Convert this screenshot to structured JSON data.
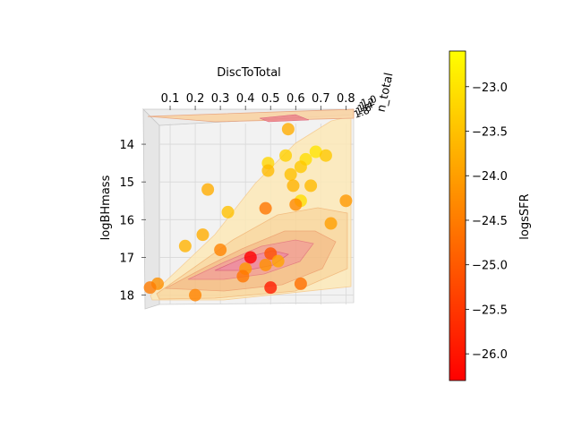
{
  "chart_data": {
    "type": "scatter",
    "projection": "3d",
    "x_axis": {
      "label": "DiscToTotal",
      "ticks": [
        "0.1",
        "0.2",
        "0.3",
        "0.4",
        "0.5",
        "0.6",
        "0.7",
        "0.8"
      ],
      "lim": [
        0.05,
        0.82
      ]
    },
    "y_axis": {
      "label": "logBHmass",
      "ticks": [
        "14",
        "15",
        "16",
        "17",
        "18"
      ],
      "lim": [
        13.5,
        18.2
      ],
      "inverted": true
    },
    "z_axis": {
      "label": "n_total",
      "ticks": [
        "1.0",
        "1.2",
        "1.4",
        "1.6",
        "1.8"
      ]
    },
    "colorbar": {
      "label": "logsSFR",
      "ticks": [
        "-23.0",
        "-23.5",
        "-24.0",
        "-24.5",
        "-25.0",
        "-25.5",
        "-26.0"
      ],
      "range": [
        -26.3,
        -22.6
      ],
      "colormap": "autumn",
      "colors": [
        "#ff0000",
        "#ffff00"
      ]
    },
    "grid": true,
    "points": [
      {
        "x": 0.57,
        "y": 13.6,
        "c": -23.8
      },
      {
        "x": 0.68,
        "y": 14.2,
        "c": -23.0
      },
      {
        "x": 0.72,
        "y": 14.3,
        "c": -23.4
      },
      {
        "x": 0.56,
        "y": 14.3,
        "c": -23.3
      },
      {
        "x": 0.64,
        "y": 14.4,
        "c": -23.1
      },
      {
        "x": 0.49,
        "y": 14.5,
        "c": -23.2
      },
      {
        "x": 0.62,
        "y": 14.6,
        "c": -23.4
      },
      {
        "x": 0.49,
        "y": 14.7,
        "c": -23.6
      },
      {
        "x": 0.58,
        "y": 14.8,
        "c": -23.5
      },
      {
        "x": 0.59,
        "y": 15.1,
        "c": -23.7
      },
      {
        "x": 0.66,
        "y": 15.1,
        "c": -23.6
      },
      {
        "x": 0.25,
        "y": 15.2,
        "c": -23.8
      },
      {
        "x": 0.62,
        "y": 15.5,
        "c": -23.1
      },
      {
        "x": 0.8,
        "y": 15.5,
        "c": -24.1
      },
      {
        "x": 0.6,
        "y": 15.6,
        "c": -24.3
      },
      {
        "x": 0.48,
        "y": 15.7,
        "c": -24.6
      },
      {
        "x": 0.33,
        "y": 15.8,
        "c": -23.5
      },
      {
        "x": 0.74,
        "y": 16.1,
        "c": -24.0
      },
      {
        "x": 0.23,
        "y": 16.4,
        "c": -23.8
      },
      {
        "x": 0.16,
        "y": 16.7,
        "c": -23.7
      },
      {
        "x": 0.3,
        "y": 16.8,
        "c": -24.4
      },
      {
        "x": 0.5,
        "y": 16.9,
        "c": -25.1
      },
      {
        "x": 0.42,
        "y": 17.0,
        "c": -26.3
      },
      {
        "x": 0.53,
        "y": 17.1,
        "c": -23.9
      },
      {
        "x": 0.48,
        "y": 17.2,
        "c": -24.2
      },
      {
        "x": 0.4,
        "y": 17.3,
        "c": -24.1
      },
      {
        "x": 0.39,
        "y": 17.5,
        "c": -24.6
      },
      {
        "x": 0.05,
        "y": 17.7,
        "c": -24.2
      },
      {
        "x": 0.02,
        "y": 17.8,
        "c": -24.5
      },
      {
        "x": 0.5,
        "y": 17.8,
        "c": -25.9
      },
      {
        "x": 0.62,
        "y": 17.7,
        "c": -24.7
      },
      {
        "x": 0.2,
        "y": 18.0,
        "c": -24.4
      }
    ]
  }
}
